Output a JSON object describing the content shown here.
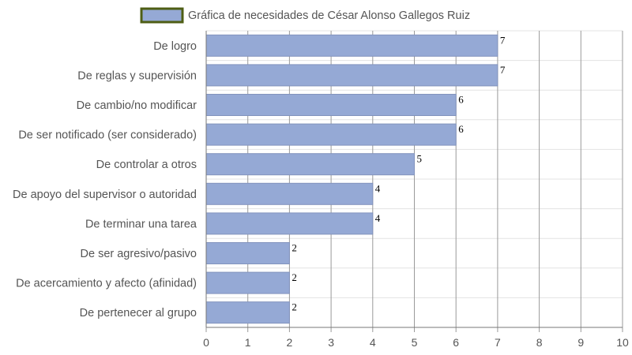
{
  "chart_data": {
    "type": "bar",
    "orientation": "horizontal",
    "legend": {
      "position": "top",
      "label": "Gráfica de necesidades de César Alonso Gallegos Ruiz"
    },
    "categories": [
      "De logro",
      "De reglas y supervisión",
      "De cambio/no modificar",
      "De ser notificado (ser considerado)",
      "De controlar a otros",
      "De apoyo del supervisor o autoridad",
      "De terminar una tarea",
      "De ser agresivo/pasivo",
      "De acercamiento y afecto (afinidad)",
      "De pertenecer al grupo"
    ],
    "series": [
      {
        "name": "Gráfica de necesidades de César Alonso Gallegos Ruiz",
        "values": [
          7,
          7,
          6,
          6,
          5,
          4,
          4,
          2,
          2,
          2
        ]
      }
    ],
    "xlim": [
      0,
      10
    ],
    "ticks": [
      "0",
      "1",
      "2",
      "3",
      "4",
      "5",
      "6",
      "7",
      "8",
      "9",
      "10"
    ],
    "grid": true,
    "colors": {
      "bar_fill": "#95a9d5",
      "bar_stroke": "#8293bd",
      "legend_border": "#4e5e14",
      "grid": "#e3e3e3",
      "vgrid": "#9a9a9a"
    }
  }
}
